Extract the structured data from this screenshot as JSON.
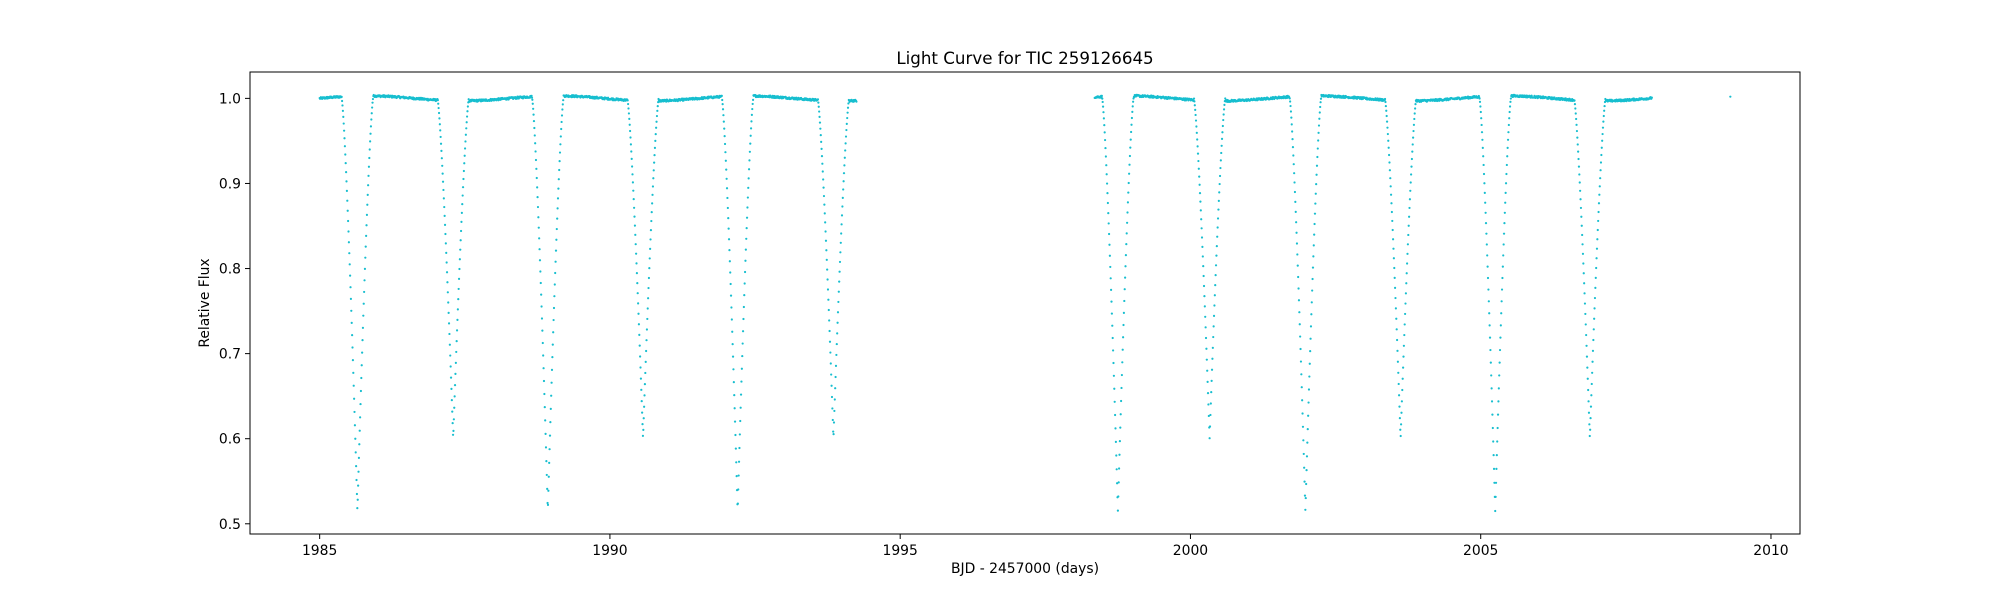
{
  "chart_data": {
    "type": "scatter",
    "title": "Light Curve for TIC 259126645",
    "xlabel": "BJD - 2457000 (days)",
    "ylabel": "Relative Flux",
    "xlim": [
      1983.8,
      2010.5
    ],
    "ylim": [
      0.488,
      1.031
    ],
    "xticks": [
      1985,
      1990,
      1995,
      2000,
      2005,
      2010
    ],
    "xtick_labels": [
      "1985",
      "1990",
      "1995",
      "2000",
      "2005",
      "2010"
    ],
    "yticks": [
      0.5,
      0.6,
      0.7,
      0.8,
      0.9,
      1.0
    ],
    "ytick_labels": [
      "0.5",
      "0.6",
      "0.7",
      "0.8",
      "0.9",
      "1.0"
    ],
    "grid": false,
    "legend": null,
    "color": "#17becf",
    "series": [
      {
        "name": "",
        "segments": [
          [
            1985.0,
            1994.25
          ],
          [
            1998.35,
            2007.95
          ]
        ],
        "baseline": 1.0,
        "variability_amplitude": 0.003,
        "eclipse_half_width": 0.27,
        "eclipses": [
          {
            "x": 1985.65,
            "depth": 0.515
          },
          {
            "x": 1987.3,
            "depth": 0.6
          },
          {
            "x": 1988.93,
            "depth": 0.515
          },
          {
            "x": 1990.57,
            "depth": 0.6
          },
          {
            "x": 1992.2,
            "depth": 0.515
          },
          {
            "x": 1993.85,
            "depth": 0.6
          },
          {
            "x": 1998.75,
            "depth": 0.515
          },
          {
            "x": 2000.33,
            "depth": 0.6
          },
          {
            "x": 2001.98,
            "depth": 0.515
          },
          {
            "x": 2003.62,
            "depth": 0.6
          },
          {
            "x": 2005.25,
            "depth": 0.515
          },
          {
            "x": 2006.88,
            "depth": 0.6
          }
        ],
        "isolated_points": [
          {
            "x": 2009.3,
            "y": 1.002
          }
        ]
      }
    ]
  }
}
